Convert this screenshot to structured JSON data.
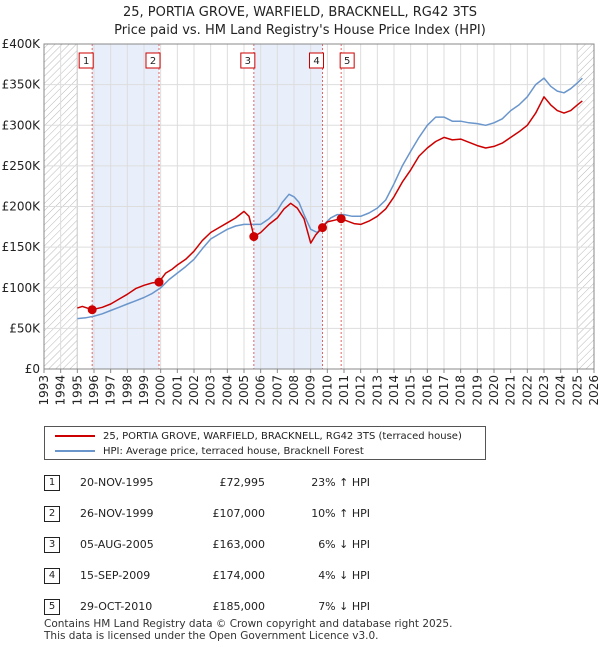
{
  "chart_data": {
    "type": "line",
    "title": "25, PORTIA GROVE, WARFIELD, BRACKNELL, RG42 3TS",
    "subtitle": "Price paid vs. HM Land Registry's House Price Index (HPI)",
    "xlabel": "",
    "ylabel": "",
    "xlim": [
      1993,
      2026
    ],
    "ylim": [
      0,
      400000
    ],
    "y_ticks": [
      {
        "value": 0,
        "label": "£0"
      },
      {
        "value": 50000,
        "label": "£50K"
      },
      {
        "value": 100000,
        "label": "£100K"
      },
      {
        "value": 150000,
        "label": "£150K"
      },
      {
        "value": 200000,
        "label": "£200K"
      },
      {
        "value": 250000,
        "label": "£250K"
      },
      {
        "value": 300000,
        "label": "£300K"
      },
      {
        "value": 350000,
        "label": "£350K"
      },
      {
        "value": 400000,
        "label": "£400K"
      }
    ],
    "x_ticks": [
      "1993",
      "1994",
      "1995",
      "1996",
      "1997",
      "1998",
      "1999",
      "2000",
      "2001",
      "2002",
      "2003",
      "2004",
      "2005",
      "2006",
      "2007",
      "2008",
      "2009",
      "2010",
      "2011",
      "2012",
      "2013",
      "2014",
      "2015",
      "2016",
      "2017",
      "2018",
      "2019",
      "2020",
      "2021",
      "2022",
      "2023",
      "2024",
      "2025",
      "2026"
    ],
    "hatched_ranges": [
      [
        1993,
        1995.0
      ],
      [
        2025.0,
        2026
      ]
    ],
    "series": [
      {
        "name": "25, PORTIA GROVE, WARFIELD, BRACKNELL, RG42 3TS (terraced house)",
        "color": "#cc0000",
        "x": [
          1995.0,
          1995.3,
          1995.9,
          1996.5,
          1997.0,
          1997.5,
          1998.0,
          1998.5,
          1999.0,
          1999.5,
          1999.9,
          2000.3,
          2000.7,
          2001.0,
          2001.5,
          2002.0,
          2002.5,
          2003.0,
          2003.5,
          2004.0,
          2004.5,
          2005.0,
          2005.3,
          2005.6,
          2006.0,
          2006.5,
          2007.0,
          2007.4,
          2007.8,
          2008.2,
          2008.6,
          2009.0,
          2009.3,
          2009.7,
          2010.0,
          2010.4,
          2010.8,
          2011.2,
          2011.6,
          2012.0,
          2012.5,
          2013.0,
          2013.5,
          2014.0,
          2014.5,
          2015.0,
          2015.5,
          2016.0,
          2016.5,
          2017.0,
          2017.5,
          2018.0,
          2018.5,
          2019.0,
          2019.5,
          2020.0,
          2020.5,
          2021.0,
          2021.5,
          2022.0,
          2022.5,
          2023.0,
          2023.4,
          2023.8,
          2024.2,
          2024.6,
          2025.0,
          2025.3
        ],
        "values": [
          75000,
          77000,
          72995,
          76000,
          80000,
          86000,
          92000,
          99000,
          103000,
          106000,
          107000,
          118000,
          123000,
          128000,
          135000,
          145000,
          158000,
          168000,
          174000,
          180000,
          186000,
          194000,
          188000,
          163000,
          168000,
          178000,
          186000,
          197000,
          204000,
          198000,
          185000,
          155000,
          165000,
          174000,
          181000,
          183000,
          185000,
          182000,
          179000,
          178000,
          182000,
          188000,
          197000,
          212000,
          230000,
          245000,
          262000,
          272000,
          280000,
          285000,
          282000,
          283000,
          279000,
          275000,
          272000,
          274000,
          278000,
          285000,
          292000,
          300000,
          315000,
          335000,
          325000,
          318000,
          315000,
          318000,
          325000,
          330000
        ]
      },
      {
        "name": "HPI: Average price, terraced house, Bracknell Forest",
        "color": "#6a96cc",
        "x": [
          1995.0,
          1995.5,
          1996.0,
          1996.5,
          1997.0,
          1997.5,
          1998.0,
          1998.5,
          1999.0,
          1999.5,
          2000.0,
          2000.5,
          2001.0,
          2001.5,
          2002.0,
          2002.5,
          2003.0,
          2003.5,
          2004.0,
          2004.5,
          2005.0,
          2005.5,
          2006.0,
          2006.5,
          2007.0,
          2007.3,
          2007.7,
          2008.0,
          2008.3,
          2008.6,
          2009.0,
          2009.4,
          2009.8,
          2010.2,
          2010.6,
          2011.0,
          2011.5,
          2012.0,
          2012.5,
          2013.0,
          2013.5,
          2014.0,
          2014.5,
          2015.0,
          2015.5,
          2016.0,
          2016.5,
          2017.0,
          2017.5,
          2018.0,
          2018.5,
          2019.0,
          2019.5,
          2020.0,
          2020.5,
          2021.0,
          2021.5,
          2022.0,
          2022.5,
          2023.0,
          2023.4,
          2023.8,
          2024.2,
          2024.6,
          2025.0,
          2025.3
        ],
        "values": [
          62000,
          63000,
          65000,
          68000,
          72000,
          76000,
          80000,
          84000,
          88000,
          93000,
          100000,
          110000,
          118000,
          126000,
          135000,
          148000,
          160000,
          166000,
          172000,
          176000,
          178000,
          178000,
          178000,
          185000,
          195000,
          205000,
          215000,
          212000,
          205000,
          190000,
          172000,
          168000,
          178000,
          186000,
          190000,
          190000,
          188000,
          188000,
          192000,
          198000,
          208000,
          228000,
          250000,
          268000,
          285000,
          300000,
          310000,
          310000,
          305000,
          305000,
          303000,
          302000,
          300000,
          303000,
          308000,
          318000,
          325000,
          335000,
          350000,
          358000,
          348000,
          342000,
          340000,
          345000,
          352000,
          358000
        ]
      }
    ],
    "sales": [
      {
        "num": "1",
        "x": 1995.89,
        "value": 72995
      },
      {
        "num": "2",
        "x": 1999.9,
        "value": 107000
      },
      {
        "num": "3",
        "x": 2005.59,
        "value": 163000
      },
      {
        "num": "4",
        "x": 2009.71,
        "value": 174000
      },
      {
        "num": "5",
        "x": 2010.83,
        "value": 185000
      }
    ]
  },
  "legend": {
    "items": [
      {
        "label": "25, PORTIA GROVE, WARFIELD, BRACKNELL, RG42 3TS (terraced house)",
        "color": "#cc0000"
      },
      {
        "label": "HPI: Average price, terraced house, Bracknell Forest",
        "color": "#6a96cc"
      }
    ]
  },
  "sales_table": [
    {
      "num": "1",
      "date": "20-NOV-1995",
      "price": "£72,995",
      "hpi": "23% ↑ HPI"
    },
    {
      "num": "2",
      "date": "26-NOV-1999",
      "price": "£107,000",
      "hpi": "10% ↑ HPI"
    },
    {
      "num": "3",
      "date": "05-AUG-2005",
      "price": "£163,000",
      "hpi": "6% ↓ HPI"
    },
    {
      "num": "4",
      "date": "15-SEP-2009",
      "price": "£174,000",
      "hpi": "4% ↓ HPI"
    },
    {
      "num": "5",
      "date": "29-OCT-2010",
      "price": "£185,000",
      "hpi": "7% ↓ HPI"
    }
  ],
  "footer": {
    "line1": "Contains HM Land Registry data © Crown copyright and database right 2025.",
    "line2": "This data is licensed under the Open Government Licence v3.0."
  }
}
